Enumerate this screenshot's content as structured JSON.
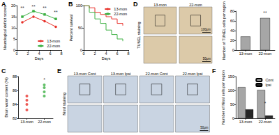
{
  "panel_labels": [
    "A",
    "B",
    "D",
    "C",
    "E",
    "F"
  ],
  "chart_data": [
    {
      "type": "line",
      "xlabel": "Days",
      "ylabel": "Neurological deficit scores",
      "x": [
        1,
        3,
        5,
        7
      ],
      "series": [
        {
          "name": "13-mon",
          "color": "#e8312a",
          "marker": "circle",
          "values": [
            12.5,
            15,
            13,
            10.5
          ]
        },
        {
          "name": "22-mon",
          "color": "#3cb043",
          "marker": "square",
          "values": [
            15,
            17.5,
            16,
            14
          ]
        }
      ],
      "xlim": [
        0,
        8
      ],
      "xticks": [
        0,
        2,
        4,
        6,
        8
      ],
      "ylim": [
        0,
        20
      ],
      "yticks": [
        0,
        5,
        10,
        15,
        20
      ],
      "legend": "lower right",
      "annotations": [
        {
          "x": 1,
          "y": 19,
          "text": "**"
        },
        {
          "x": 3,
          "y": 19.5,
          "text": "**"
        },
        {
          "x": 5,
          "y": 19,
          "text": "**"
        },
        {
          "x": 7,
          "y": 17,
          "text": "**"
        }
      ]
    },
    {
      "type": "step",
      "xlabel": "Days",
      "ylabel": "Percent survival",
      "x": [
        0,
        1,
        2,
        3,
        4,
        5,
        6,
        7
      ],
      "series": [
        {
          "name": "13-mon",
          "color": "#e8312a",
          "marker": "none",
          "values": [
            100,
            95,
            85,
            80,
            75,
            70,
            60,
            55
          ]
        },
        {
          "name": "22-mon",
          "color": "#3cb043",
          "marker": "none",
          "values": [
            100,
            85,
            70,
            60,
            45,
            35,
            25,
            20
          ]
        }
      ],
      "xlim": [
        0,
        8
      ],
      "xticks": [
        0,
        2,
        4,
        6,
        8
      ],
      "ylim": [
        0,
        100
      ],
      "yticks": [
        0,
        50,
        100
      ],
      "legend": "upper right"
    },
    {
      "type": "bar",
      "ylabel": "Number of TUNEL cells per region",
      "categories": [
        "13-mon",
        "22-mon"
      ],
      "values": [
        28,
        66
      ],
      "color": "#a6a6a6",
      "ylim": [
        0,
        80
      ],
      "yticks": [
        0,
        20,
        40,
        60,
        80
      ],
      "annotations": [
        {
          "x": 0.5,
          "y": 76,
          "text": "**"
        }
      ]
    },
    {
      "type": "scatter",
      "ylabel": "Brain water content (%)",
      "categories": [
        "13-mon",
        "22-mon"
      ],
      "points": [
        [
          83.2,
          84,
          84.6,
          85.2
        ],
        [
          85.2,
          85.8,
          86.4,
          86.8
        ]
      ],
      "colors": [
        "#e8312a",
        "#3cb043"
      ],
      "marker": "circle",
      "ylim": [
        82,
        88
      ],
      "yticks": [
        82,
        84,
        86,
        88
      ],
      "annotations": [
        {
          "x": 0.5,
          "y": 87.6,
          "text": "*"
        }
      ]
    },
    {
      "type": "bar",
      "ylabel": "Number of Nissl cells per region",
      "categories": [
        "13-mon",
        "22-mon"
      ],
      "series": [
        {
          "name": "Cont",
          "color": "#a6a6a6",
          "values": [
            112,
            102
          ]
        },
        {
          "name": "Ipsi",
          "color": "#262626",
          "values": [
            32,
            10
          ]
        }
      ],
      "ylim": [
        0,
        150
      ],
      "yticks": [
        0,
        50,
        100,
        150
      ],
      "legend": "upper right",
      "annotations": [
        {
          "x": 0.5,
          "y": 55,
          "text": "*"
        }
      ]
    }
  ],
  "images": [
    {
      "title": "TUNEL staining",
      "labels": [
        "13-mon",
        "22-mon"
      ],
      "scale_bars": [
        "100μm",
        "50μm"
      ]
    },
    {
      "title": "Nissl staining",
      "labels": [
        "13-mon Cont",
        "13-mon Ipsi",
        "22-mon Cont",
        "22-mon Ipsi"
      ],
      "scale_bars": [
        "50μm"
      ]
    }
  ]
}
